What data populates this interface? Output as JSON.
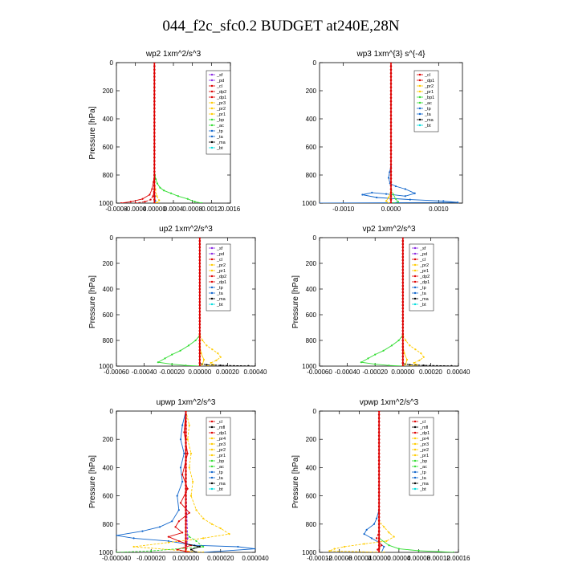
{
  "title": "044_f2c_sfc0.2  BUDGET at240E,28N",
  "colors": {
    "sf": "#8a2be2",
    "pd": "#8a2be2",
    "cl": "#dd0000",
    "dp": "#dd0000",
    "pr": "#ffcc00",
    "pr1": "#ffcc00",
    "bp": "#33dd33",
    "ac": "#33dd33",
    "tp": "#1166cc",
    "ta": "#1166cc",
    "ma": "#000000",
    "bt": "#00dddd",
    "mfi": "#8a2be2"
  },
  "chart_data": [
    {
      "type": "line",
      "title": "wp2   1xm^2/s^3",
      "ylabel": "Pressure [hPa]",
      "xlim": [
        -0.0008,
        0.0016
      ],
      "ylim": [
        1000,
        0
      ],
      "xticks": [
        "-0.0008",
        "-0.0004",
        "0.00000",
        "0.0004",
        "0.0008",
        "0.0012",
        "0.0016"
      ],
      "yticks": [
        "0",
        "200",
        "400",
        "600",
        "800",
        "1000"
      ],
      "legend": [
        "_sf",
        "_pd",
        "_cl",
        "_dp2",
        "_dp1",
        "_pr3",
        "_pr2",
        "_pr1",
        "_bp",
        "_ac",
        "_tp",
        "_ta",
        "_ma",
        "_bt"
      ],
      "series": [
        {
          "name": "_ac",
          "color": "#33dd33",
          "x": [
            0,
            0,
            1e-05,
            3e-05,
            6e-05,
            0.00012,
            0.0002,
            0.00035,
            0.0005,
            0.0007,
            0.00085,
            0.001
          ],
          "y": [
            0,
            750,
            800,
            830,
            860,
            890,
            910,
            930,
            950,
            970,
            990,
            1000
          ]
        },
        {
          "name": "_pr1",
          "color": "#ffcc00",
          "x": [
            0,
            0,
            2e-05,
            5e-05,
            0.0001,
            6e-05,
            0
          ],
          "y": [
            0,
            850,
            900,
            950,
            980,
            995,
            1000
          ]
        },
        {
          "name": "_cl",
          "color": "#dd0000",
          "x": [
            0,
            0,
            -2e-05,
            -5e-05,
            -0.0001,
            -0.00025,
            -0.0005,
            -0.0007
          ],
          "y": [
            0,
            800,
            850,
            900,
            940,
            970,
            990,
            1000
          ]
        },
        {
          "name": "_dp1",
          "color": "#dd0000",
          "x": [
            0,
            0,
            -1e-05,
            -3e-05,
            -8e-05,
            -0.0002,
            -0.0004
          ],
          "y": [
            0,
            880,
            920,
            950,
            975,
            990,
            1000
          ]
        },
        {
          "name": "_pd",
          "color": "#8a2be2",
          "x": [
            0,
            0,
            0
          ],
          "y": [
            0,
            900,
            1000
          ]
        },
        {
          "name": "_tp",
          "color": "#1166cc",
          "x": [
            0,
            0,
            1e-05,
            2e-05,
            0
          ],
          "y": [
            0,
            900,
            950,
            985,
            1000
          ]
        }
      ]
    },
    {
      "type": "line",
      "title": "wp3   1xm^{3} s^{-4}",
      "ylabel": "",
      "xlim": [
        -0.0015,
        0.0015
      ],
      "ylim": [
        1000,
        0
      ],
      "xticks": [
        "-0.0010",
        "0.0000",
        "0.0010"
      ],
      "xtick_values": [
        -0.001,
        0,
        0.001
      ],
      "yticks": [
        "0",
        "200",
        "400",
        "600",
        "800",
        "1000"
      ],
      "legend": [
        "_cl",
        "_dp1",
        "_pr2",
        "_pr1",
        "_bp1",
        "_ac",
        "_tp",
        "_ta",
        "_ma",
        "_bt"
      ],
      "series": [
        {
          "name": "_tp",
          "color": "#1166cc",
          "x": [
            0,
            0,
            -3e-05,
            -5e-05,
            -2e-05,
            0.0001,
            0.0003,
            0.0005,
            0.0003,
            -0.0001,
            -0.0004,
            -0.0006,
            -0.0003,
            0.0004,
            0.0011,
            0.0014,
            -0.0015
          ],
          "y": [
            0,
            740,
            780,
            820,
            860,
            880,
            900,
            930,
            950,
            935,
            925,
            940,
            960,
            975,
            985,
            995,
            1000
          ]
        },
        {
          "name": "_ac",
          "color": "#33dd33",
          "x": [
            0,
            0,
            5e-05,
            0.0001,
            0.00015,
            5e-05
          ],
          "y": [
            0,
            900,
            940,
            970,
            990,
            1000
          ]
        },
        {
          "name": "_pr1",
          "color": "#ffcc00",
          "x": [
            0,
            0,
            -5e-05,
            -0.0001,
            -5e-05
          ],
          "y": [
            0,
            920,
            960,
            985,
            1000
          ]
        },
        {
          "name": "_cl",
          "color": "#dd0000",
          "x": [
            0,
            0,
            0
          ],
          "y": [
            0,
            900,
            1000
          ]
        }
      ]
    },
    {
      "type": "line",
      "title": "up2   1xm^2/s^3",
      "ylabel": "Pressure [hPa]",
      "xlim": [
        -0.0006,
        0.0004
      ],
      "ylim": [
        1000,
        0
      ],
      "xticks": [
        "-0.00060",
        "-0.00040",
        "-0.00020",
        "0.00000",
        "0.00020",
        "0.00040"
      ],
      "yticks": [
        "0",
        "200",
        "400",
        "600",
        "800",
        "1000"
      ],
      "legend": [
        "_sf",
        "_pd",
        "_cl",
        "_pr2",
        "_pr1",
        "_dp2",
        "_dp1",
        "_tp",
        "_ta",
        "_ma",
        "_bt"
      ],
      "series": [
        {
          "name": "_dp2",
          "color": "#33dd33",
          "x": [
            0,
            0,
            -3e-05,
            -8e-05,
            -0.00014,
            -0.0002,
            -0.00025,
            -0.0003,
            -0.0002,
            -0.0001,
            0
          ],
          "y": [
            0,
            760,
            800,
            840,
            880,
            910,
            940,
            970,
            985,
            995,
            1000
          ]
        },
        {
          "name": "_pr1",
          "color": "#ffcc00",
          "x": [
            0,
            0,
            2e-05,
            5e-05,
            9e-05,
            0.00013,
            0.00015,
            0.00012,
            8e-05,
            0.0001,
            5e-05
          ],
          "y": [
            0,
            760,
            800,
            840,
            870,
            900,
            930,
            955,
            975,
            990,
            1000
          ]
        },
        {
          "name": "_pr2",
          "color": "#ffcc00",
          "x": [
            0,
            0,
            1e-05,
            3e-05,
            2e-05,
            0
          ],
          "y": [
            0,
            840,
            900,
            950,
            985,
            1000
          ]
        },
        {
          "name": "_ma",
          "color": "#000000",
          "x": [
            0,
            0,
            5e-05,
            0.00015,
            0.00035,
            0.0004
          ],
          "y": [
            0,
            980,
            990,
            994,
            998,
            1000
          ]
        },
        {
          "name": "_cl",
          "color": "#dd0000",
          "x": [
            0,
            0,
            0
          ],
          "y": [
            0,
            900,
            1000
          ]
        }
      ]
    },
    {
      "type": "line",
      "title": "vp2   1xm^2/s^3",
      "ylabel": "Pressure [hPa]",
      "xlim": [
        -0.0006,
        0.0004
      ],
      "ylim": [
        1000,
        0
      ],
      "xticks": [
        "-0.00060",
        "-0.00040",
        "-0.00020",
        "0.00000",
        "0.00020",
        "0.00040"
      ],
      "yticks": [
        "0",
        "200",
        "400",
        "600",
        "800",
        "1000"
      ],
      "legend": [
        "_sf",
        "_pd",
        "_cl",
        "_pr2",
        "_pr1",
        "_dp2",
        "_dp1",
        "_tp",
        "_ta",
        "_ma",
        "_bt"
      ],
      "series": [
        {
          "name": "_dp2",
          "color": "#33dd33",
          "x": [
            0,
            0,
            -3e-05,
            -8e-05,
            -0.00014,
            -0.0002,
            -0.00025,
            -0.0003,
            -0.0002,
            -0.0001,
            0
          ],
          "y": [
            0,
            760,
            800,
            840,
            880,
            910,
            940,
            970,
            985,
            995,
            1000
          ]
        },
        {
          "name": "_pr1",
          "color": "#ffcc00",
          "x": [
            0,
            0,
            2e-05,
            5e-05,
            9e-05,
            0.00013,
            0.00015,
            0.00012,
            8e-05,
            0.0001,
            5e-05
          ],
          "y": [
            0,
            760,
            800,
            840,
            870,
            900,
            930,
            955,
            975,
            990,
            1000
          ]
        },
        {
          "name": "_pr2",
          "color": "#ffcc00",
          "x": [
            0,
            0,
            1e-05,
            3e-05,
            2e-05,
            0
          ],
          "y": [
            0,
            840,
            900,
            950,
            985,
            1000
          ]
        },
        {
          "name": "_ma",
          "color": "#000000",
          "x": [
            0,
            0,
            5e-05,
            0.00015,
            0.00035,
            0.0004
          ],
          "y": [
            0,
            980,
            990,
            994,
            998,
            1000
          ]
        },
        {
          "name": "_cl",
          "color": "#dd0000",
          "x": [
            0,
            0,
            0
          ],
          "y": [
            0,
            900,
            1000
          ]
        }
      ]
    },
    {
      "type": "line",
      "title": "upwp   1xm^2/s^3",
      "ylabel": "Pressure [hPa]",
      "xlim": [
        -4e-05,
        4e-05
      ],
      "ylim": [
        1000,
        0
      ],
      "xticks": [
        "-0.000040",
        "-0.000020",
        "0.000000",
        "0.000020",
        "0.000040"
      ],
      "yticks": [
        "0",
        "200",
        "400",
        "600",
        "800",
        "1000"
      ],
      "legend": [
        "_cl",
        "_mfl",
        "_dp1",
        "_pr4",
        "_pr3",
        "_pr2",
        "_pr1",
        "_bp",
        "_ac",
        "_tp",
        "_ta",
        "_ma",
        "_bt"
      ],
      "series": [
        {
          "name": "_tp",
          "color": "#1166cc",
          "x": [
            0,
            -2e-06,
            -3e-06,
            -1e-06,
            -3e-06,
            -2e-06,
            -5e-06,
            -4e-06,
            -8e-06,
            -1.5e-05,
            -2.5e-05,
            -4e-05,
            -3e-05,
            -1e-05,
            5e-06,
            3e-05,
            4e-05,
            1e-05
          ],
          "y": [
            0,
            100,
            200,
            300,
            400,
            500,
            600,
            700,
            780,
            820,
            850,
            880,
            900,
            920,
            950,
            960,
            975,
            1000
          ]
        },
        {
          "name": "_pr1",
          "color": "#ffcc00",
          "x": [
            0,
            2e-06,
            1e-06,
            3e-06,
            2e-06,
            4e-06,
            3e-06,
            6e-06,
            1e-05,
            1.5e-05,
            2e-05,
            2.5e-05,
            1e-05,
            -1e-05,
            -3e-05,
            1e-05
          ],
          "y": [
            0,
            100,
            200,
            300,
            400,
            500,
            600,
            700,
            760,
            800,
            830,
            870,
            900,
            930,
            960,
            1000
          ]
        },
        {
          "name": "_cl",
          "color": "#dd0000",
          "x": [
            0,
            -1e-06,
            1e-06,
            -2e-06,
            1e-06,
            -3e-06,
            2e-06,
            -4e-06,
            -6e-06,
            -2e-06,
            -1e-05,
            -4e-06,
            3e-06,
            -5e-06,
            2e-06
          ],
          "y": [
            0,
            150,
            300,
            450,
            550,
            650,
            720,
            780,
            820,
            860,
            890,
            920,
            950,
            980,
            1000
          ]
        },
        {
          "name": "_ac",
          "color": "#33dd33",
          "x": [
            0,
            0,
            2e-06,
            6e-06,
            1e-05,
            -2e-05,
            -4e-05
          ],
          "y": [
            0,
            850,
            890,
            920,
            960,
            990,
            1000
          ]
        },
        {
          "name": "_ma",
          "color": "#000000",
          "x": [
            0,
            0,
            8e-06,
            3e-06,
            6e-06
          ],
          "y": [
            0,
            940,
            960,
            980,
            1000
          ]
        },
        {
          "name": "_bp",
          "color": "#8a2be2",
          "x": [
            0,
            0,
            1e-06,
            0
          ],
          "y": [
            0,
            500,
            900,
            1000
          ]
        }
      ]
    },
    {
      "type": "line",
      "title": "vpwp   1xm^2/s^3",
      "ylabel": "Pressure [hPa]",
      "xlim": [
        -0.00012,
        0.00016
      ],
      "ylim": [
        1000,
        0
      ],
      "xticks": [
        "-0.00012",
        "-0.00008",
        "-0.00004",
        "0.00000",
        "0.00004",
        "0.00008",
        "0.00012",
        "0.00016"
      ],
      "yticks": [
        "0",
        "200",
        "400",
        "600",
        "800",
        "1000"
      ],
      "legend": [
        "_cl",
        "_mfl",
        "_dp1",
        "_pr4",
        "_pr3",
        "_pr2",
        "_pr1",
        "_bp",
        "_ac",
        "_tp",
        "_ta",
        "_ma",
        "_bt"
      ],
      "series": [
        {
          "name": "_tp",
          "color": "#1166cc",
          "x": [
            0,
            0,
            -5e-06,
            -1e-05,
            -2.5e-05,
            -3e-05,
            -1.5e-05,
            0,
            1e-05,
            5e-06
          ],
          "y": [
            0,
            700,
            760,
            800,
            840,
            870,
            900,
            930,
            960,
            1000
          ]
        },
        {
          "name": "_pr1",
          "color": "#ffcc00",
          "x": [
            0,
            0,
            1e-05,
            2e-05,
            3e-05,
            1.5e-05,
            -3e-05,
            -7e-05,
            -9e-05,
            -0.0001,
            1e-05
          ],
          "y": [
            0,
            780,
            820,
            860,
            890,
            920,
            940,
            960,
            975,
            990,
            1000
          ]
        },
        {
          "name": "_ac",
          "color": "#33dd33",
          "x": [
            0,
            0,
            2e-05,
            4e-05,
            8e-05,
            0.00012,
            0.00015
          ],
          "y": [
            0,
            900,
            950,
            975,
            988,
            995,
            1000
          ]
        },
        {
          "name": "_cl",
          "color": "#dd0000",
          "x": [
            0,
            0,
            -5e-06,
            5e-06,
            -3e-06,
            0
          ],
          "y": [
            0,
            850,
            900,
            950,
            980,
            1000
          ]
        },
        {
          "name": "_bp",
          "color": "#8a2be2",
          "x": [
            0,
            0,
            0
          ],
          "y": [
            0,
            500,
            1000
          ]
        }
      ]
    }
  ]
}
